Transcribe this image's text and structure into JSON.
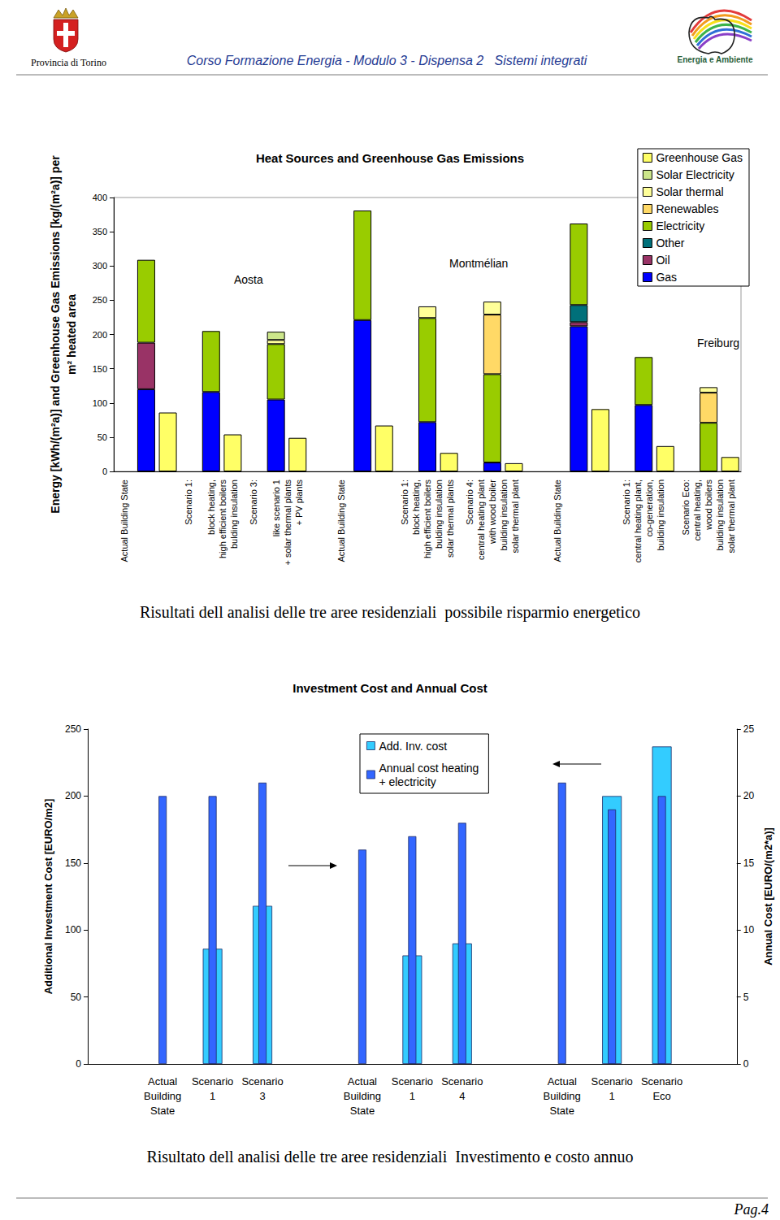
{
  "header": {
    "left": "Provincia di Torino",
    "title": "Corso Formazione Energia - Modulo 3 - Dispensa 2   Sistemi integrati",
    "right": "Energia e Ambiente"
  },
  "chart_data": [
    {
      "type": "bar",
      "title": "Heat Sources and Greenhouse Gas Emissions",
      "y_label": "Energy [kWh/(m²a)] and Greenhouse Gas Emissions [kg/(m²a)] per\nm² heated area",
      "annotations": [
        "Aosta",
        "Montmélian",
        "Freiburg"
      ],
      "categories": [
        "Actual Building State",
        null,
        null,
        null,
        "Scenario 1:\n\nblock heating,\nhigh efficient boilers\nbulding insulation",
        null,
        null,
        "Scenario 3:\n\nlike scenario 1\n+ solar thermal plants\n+ PV plants",
        null,
        null,
        "Actual Building State",
        null,
        null,
        null,
        "Scenario 1:\nblock heating,\nhigh efficient boilers\nbulding insulation\nsolar thermal plants",
        null,
        null,
        "Scenario 4:\ncentral heating plant\nwith wood boiler\nbuilding insulation\nsolar thermal plant",
        null,
        null,
        "Actual Building State",
        null,
        null,
        null,
        "Scenario 1:\ncentral heating plant,\nco-generation,\nbuilding insulation",
        null,
        null,
        "Scenario Eco:\ncentral heating,\nwood boilers\nbuilding insulation\nsolar thermal plant",
        null
      ],
      "stacked": true,
      "grid": false,
      "legend": "upper right",
      "ylim": [
        0,
        400
      ],
      "yticks": [
        0,
        50,
        100,
        150,
        200,
        250,
        300,
        350,
        400
      ],
      "series": [
        {
          "name": "Gas",
          "color": "#0000ff",
          "values": [
            null,
            120,
            null,
            null,
            116,
            null,
            null,
            105,
            null,
            null,
            null,
            221,
            null,
            null,
            72,
            null,
            null,
            13,
            null,
            null,
            null,
            212,
            null,
            null,
            97,
            null,
            null,
            null,
            null
          ]
        },
        {
          "name": "Oil",
          "color": "#993366",
          "values": [
            null,
            68,
            null,
            null,
            null,
            null,
            null,
            null,
            null,
            null,
            null,
            null,
            null,
            null,
            null,
            null,
            null,
            null,
            null,
            null,
            null,
            6,
            null,
            null,
            null,
            null,
            null,
            null,
            null
          ]
        },
        {
          "name": "Other",
          "color": "#00707a",
          "values": [
            null,
            null,
            null,
            null,
            null,
            null,
            null,
            null,
            null,
            null,
            null,
            null,
            null,
            null,
            null,
            null,
            null,
            null,
            null,
            null,
            null,
            25,
            null,
            null,
            null,
            null,
            null,
            null,
            null
          ]
        },
        {
          "name": "Electricity",
          "color": "#99cc00",
          "values": [
            null,
            121,
            null,
            null,
            89,
            null,
            null,
            81,
            null,
            null,
            null,
            160,
            null,
            null,
            152,
            null,
            null,
            129,
            null,
            null,
            null,
            119,
            null,
            null,
            70,
            null,
            null,
            71,
            null
          ]
        },
        {
          "name": "Renewables",
          "color": "#ffd966",
          "values": [
            null,
            null,
            null,
            null,
            null,
            null,
            null,
            null,
            null,
            null,
            null,
            null,
            null,
            null,
            null,
            null,
            null,
            87,
            null,
            null,
            null,
            null,
            null,
            null,
            null,
            null,
            null,
            44,
            null
          ]
        },
        {
          "name": "Solar thermal",
          "color": "#ffff99",
          "values": [
            null,
            null,
            null,
            null,
            null,
            null,
            null,
            6,
            null,
            null,
            null,
            null,
            null,
            null,
            17,
            null,
            null,
            19,
            null,
            null,
            null,
            null,
            null,
            null,
            null,
            null,
            null,
            8,
            null
          ]
        },
        {
          "name": "Solar Electricity",
          "color": "#cce68a",
          "values": [
            null,
            null,
            null,
            null,
            null,
            null,
            null,
            12,
            null,
            null,
            null,
            null,
            null,
            null,
            null,
            null,
            null,
            null,
            null,
            null,
            null,
            null,
            null,
            null,
            null,
            null,
            null,
            null,
            null
          ]
        },
        {
          "name": "Greenhouse Gas",
          "color": "#ffff66",
          "values": [
            null,
            null,
            86,
            null,
            null,
            54,
            null,
            null,
            49,
            null,
            null,
            null,
            67,
            null,
            null,
            27,
            null,
            null,
            12,
            null,
            null,
            null,
            91,
            null,
            null,
            37,
            null,
            null,
            21
          ]
        }
      ]
    },
    {
      "type": "bar",
      "title": "Investment Cost and Annual Cost",
      "y_label": "Additional Investment Cost [EURO/m2]",
      "y2_label": "Annual Cost [EURO/(m2*a)]",
      "categories": [
        null,
        "Actual\nBuilding\nState",
        "Scenario\n1",
        "Scenario\n3",
        null,
        "Actual\nBuilding\nState",
        "Scenario\n1",
        "Scenario\n4",
        null,
        "Actual\nBuilding\nState",
        "Scenario\n1",
        "Scenario\nEco",
        null
      ],
      "grid": false,
      "legend": "upper center",
      "ylim": [
        0,
        250
      ],
      "yticks": [
        0,
        50,
        100,
        150,
        200,
        250
      ],
      "y2lim": [
        0,
        25
      ],
      "y2ticks": [
        0,
        5,
        10,
        15,
        20,
        25
      ],
      "series": [
        {
          "name": "Add. Inv. cost",
          "color": "#33ccff",
          "values": [
            null,
            null,
            86,
            118,
            null,
            null,
            81,
            90,
            null,
            null,
            200,
            237,
            null
          ]
        },
        {
          "name": "Annual cost heating\n+ electricity",
          "color": "#3366ff",
          "axis": "y2",
          "values": [
            null,
            20,
            20,
            21,
            null,
            16,
            17,
            18,
            null,
            21,
            19,
            20,
            null
          ]
        }
      ]
    }
  ],
  "captions": [
    "Risultati dell analisi delle tre aree residenziali  possibile risparmio energetico",
    "Risultato dell analisi delle tre aree residenziali  Investimento e costo annuo"
  ],
  "footer": {
    "page": "Pag.4"
  }
}
